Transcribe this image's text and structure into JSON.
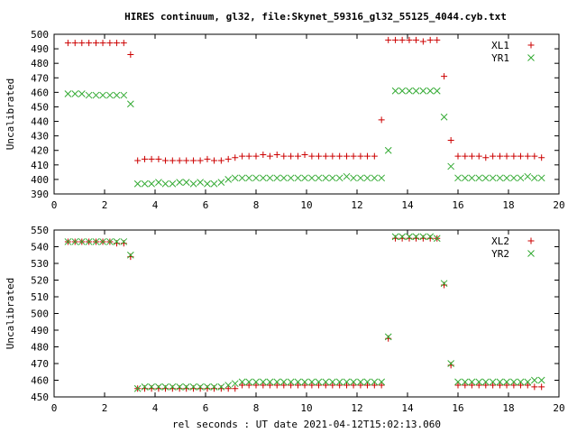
{
  "page": {
    "title": "HIRES continuum, gl32, file:Skynet_59316_gl32_55125_4044.cyb.txt",
    "xlabel": "rel seconds : UT date 2021-04-12T15:02:13.060"
  },
  "colors": {
    "xl": "#cc0000",
    "yr": "#33aa33"
  },
  "chart_data": [
    {
      "type": "scatter",
      "ylabel": "Uncalibrated",
      "xlim": [
        0,
        20
      ],
      "ylim": [
        390,
        500
      ],
      "x_ticks": [
        "0",
        "2",
        "4",
        "6",
        "8",
        "10",
        "12",
        "14",
        "16",
        "18",
        "20"
      ],
      "y_ticks": [
        "390",
        "400",
        "410",
        "420",
        "430",
        "440",
        "450",
        "460",
        "470",
        "480",
        "490",
        "500"
      ],
      "legend_position": "top-right",
      "series": [
        {
          "name": "XL1",
          "marker": "plus",
          "color": "#cc0000",
          "x": [
            0.55,
            0.83,
            1.1,
            1.38,
            1.66,
            1.93,
            2.21,
            2.48,
            2.76,
            3.03,
            3.31,
            3.59,
            3.86,
            4.14,
            4.41,
            4.69,
            4.97,
            5.24,
            5.52,
            5.79,
            6.07,
            6.34,
            6.62,
            6.9,
            7.17,
            7.45,
            7.72,
            8.0,
            8.28,
            8.55,
            8.83,
            9.1,
            9.38,
            9.66,
            9.93,
            10.21,
            10.48,
            10.76,
            11.03,
            11.31,
            11.59,
            11.86,
            12.14,
            12.41,
            12.69,
            12.97,
            13.24,
            13.52,
            13.79,
            14.07,
            14.34,
            14.62,
            14.9,
            15.17,
            15.45,
            15.72,
            16.0,
            16.28,
            16.55,
            16.83,
            17.1,
            17.38,
            17.66,
            17.93,
            18.21,
            18.48,
            18.76,
            19.03,
            19.31
          ],
          "y": [
            494,
            494,
            494,
            494,
            494,
            494,
            494,
            494,
            494,
            486,
            413,
            414,
            414,
            414,
            413,
            413,
            413,
            413,
            413,
            413,
            414,
            413,
            413,
            414,
            415,
            416,
            416,
            416,
            417,
            416,
            417,
            416,
            416,
            416,
            417,
            416,
            416,
            416,
            416,
            416,
            416,
            416,
            416,
            416,
            416,
            441,
            496,
            496,
            496,
            496,
            496,
            495,
            496,
            496,
            471,
            427,
            416,
            416,
            416,
            416,
            415,
            416,
            416,
            416,
            416,
            416,
            416,
            416,
            415
          ]
        },
        {
          "name": "YR1",
          "marker": "cross",
          "color": "#33aa33",
          "x": [
            0.55,
            0.83,
            1.1,
            1.38,
            1.66,
            1.93,
            2.21,
            2.48,
            2.76,
            3.03,
            3.31,
            3.59,
            3.86,
            4.14,
            4.41,
            4.69,
            4.97,
            5.24,
            5.52,
            5.79,
            6.07,
            6.34,
            6.62,
            6.9,
            7.17,
            7.45,
            7.72,
            8.0,
            8.28,
            8.55,
            8.83,
            9.1,
            9.38,
            9.66,
            9.93,
            10.21,
            10.48,
            10.76,
            11.03,
            11.31,
            11.59,
            11.86,
            12.14,
            12.41,
            12.69,
            12.97,
            13.24,
            13.52,
            13.79,
            14.07,
            14.34,
            14.62,
            14.9,
            15.17,
            15.45,
            15.72,
            16.0,
            16.28,
            16.55,
            16.83,
            17.1,
            17.38,
            17.66,
            17.93,
            18.21,
            18.48,
            18.76,
            19.03,
            19.31
          ],
          "y": [
            459,
            459,
            459,
            458,
            458,
            458,
            458,
            458,
            458,
            452,
            397,
            397,
            397,
            398,
            397,
            397,
            398,
            398,
            397,
            398,
            397,
            397,
            398,
            400,
            401,
            401,
            401,
            401,
            401,
            401,
            401,
            401,
            401,
            401,
            401,
            401,
            401,
            401,
            401,
            401,
            402,
            401,
            401,
            401,
            401,
            401,
            420,
            461,
            461,
            461,
            461,
            461,
            461,
            461,
            443,
            409,
            401,
            401,
            401,
            401,
            401,
            401,
            401,
            401,
            401,
            401,
            402,
            401,
            401
          ]
        }
      ]
    },
    {
      "type": "scatter",
      "ylabel": "Uncalibrated",
      "xlim": [
        0,
        20
      ],
      "ylim": [
        450,
        550
      ],
      "x_ticks": [
        "0",
        "2",
        "4",
        "6",
        "8",
        "10",
        "12",
        "14",
        "16",
        "18",
        "20"
      ],
      "y_ticks": [
        "450",
        "460",
        "470",
        "480",
        "490",
        "500",
        "510",
        "520",
        "530",
        "540",
        "550"
      ],
      "legend_position": "top-right",
      "series": [
        {
          "name": "XL2",
          "marker": "plus",
          "color": "#cc0000",
          "x": [
            0.55,
            0.83,
            1.1,
            1.38,
            1.66,
            1.93,
            2.21,
            2.48,
            2.76,
            3.03,
            3.31,
            3.59,
            3.86,
            4.14,
            4.41,
            4.69,
            4.97,
            5.24,
            5.52,
            5.79,
            6.07,
            6.34,
            6.62,
            6.9,
            7.17,
            7.45,
            7.72,
            8.0,
            8.28,
            8.55,
            8.83,
            9.1,
            9.38,
            9.66,
            9.93,
            10.21,
            10.48,
            10.76,
            11.03,
            11.31,
            11.59,
            11.86,
            12.14,
            12.41,
            12.69,
            12.97,
            13.24,
            13.52,
            13.79,
            14.07,
            14.34,
            14.62,
            14.9,
            15.17,
            15.45,
            15.72,
            16.0,
            16.28,
            16.55,
            16.83,
            17.1,
            17.38,
            17.66,
            17.93,
            18.21,
            18.48,
            18.76,
            19.03,
            19.31
          ],
          "y": [
            543,
            543,
            543,
            543,
            543,
            543,
            543,
            542,
            542,
            534,
            455,
            455,
            455,
            455,
            455,
            455,
            455,
            455,
            455,
            455,
            455,
            455,
            455,
            455,
            455,
            457,
            457,
            457,
            457,
            457,
            457,
            457,
            457,
            457,
            457,
            457,
            457,
            457,
            457,
            457,
            457,
            457,
            457,
            457,
            457,
            457,
            485,
            545,
            545,
            545,
            545,
            545,
            545,
            545,
            517,
            469,
            457,
            457,
            457,
            457,
            457,
            457,
            457,
            457,
            457,
            457,
            457,
            456,
            456
          ]
        },
        {
          "name": "YR2",
          "marker": "cross",
          "color": "#33aa33",
          "x": [
            0.55,
            0.83,
            1.1,
            1.38,
            1.66,
            1.93,
            2.21,
            2.48,
            2.76,
            3.03,
            3.31,
            3.59,
            3.86,
            4.14,
            4.41,
            4.69,
            4.97,
            5.24,
            5.52,
            5.79,
            6.07,
            6.34,
            6.62,
            6.9,
            7.17,
            7.45,
            7.72,
            8.0,
            8.28,
            8.55,
            8.83,
            9.1,
            9.38,
            9.66,
            9.93,
            10.21,
            10.48,
            10.76,
            11.03,
            11.31,
            11.59,
            11.86,
            12.14,
            12.41,
            12.69,
            12.97,
            13.24,
            13.52,
            13.79,
            14.07,
            14.34,
            14.62,
            14.9,
            15.17,
            15.45,
            15.72,
            16.0,
            16.28,
            16.55,
            16.83,
            17.1,
            17.38,
            17.66,
            17.93,
            18.21,
            18.48,
            18.76,
            19.03,
            19.31
          ],
          "y": [
            543,
            543,
            543,
            543,
            543,
            543,
            543,
            543,
            543,
            535,
            455,
            456,
            456,
            456,
            456,
            456,
            456,
            456,
            456,
            456,
            456,
            456,
            456,
            457,
            458,
            459,
            459,
            459,
            459,
            459,
            459,
            459,
            459,
            459,
            459,
            459,
            459,
            459,
            459,
            459,
            459,
            459,
            459,
            459,
            459,
            459,
            486,
            546,
            546,
            546,
            546,
            546,
            546,
            545,
            518,
            470,
            459,
            459,
            459,
            459,
            459,
            459,
            459,
            459,
            459,
            459,
            459,
            460,
            460
          ]
        }
      ]
    }
  ]
}
